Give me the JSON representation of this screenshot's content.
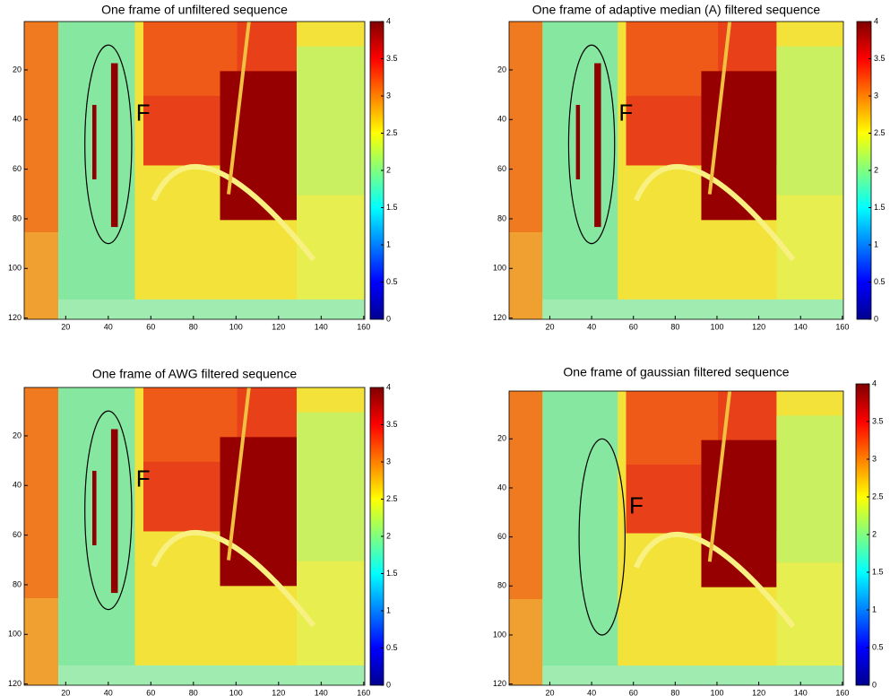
{
  "chart_data": [
    {
      "type": "heatmap",
      "title": "One frame of unfiltered sequence",
      "annotation": "F",
      "xlim": [
        0.5,
        160.5
      ],
      "xticks": [
        20,
        40,
        60,
        80,
        100,
        120,
        140,
        160
      ],
      "ylim": [
        0.5,
        120.5
      ],
      "yticks": [
        20,
        40,
        60,
        80,
        100,
        120
      ],
      "y_reversed": true,
      "clim": [
        0,
        4
      ],
      "cticks": [
        0,
        0.5,
        1,
        1.5,
        2,
        2.5,
        3,
        3.5,
        4
      ],
      "colormap": "jet"
    },
    {
      "type": "heatmap",
      "title": "One frame of adaptive median (A) filtered sequence",
      "annotation": "F",
      "xlim": [
        0.5,
        160.5
      ],
      "xticks": [
        20,
        40,
        60,
        80,
        100,
        120,
        140,
        160
      ],
      "ylim": [
        0.5,
        120.5
      ],
      "yticks": [
        20,
        40,
        60,
        80,
        100,
        120
      ],
      "y_reversed": true,
      "clim": [
        0,
        4
      ],
      "cticks": [
        0,
        0.5,
        1,
        1.5,
        2,
        2.5,
        3,
        3.5,
        4
      ],
      "colormap": "jet"
    },
    {
      "type": "heatmap",
      "title": "One frame of AWG filtered sequence",
      "annotation": "F",
      "xlim": [
        0.5,
        160.5
      ],
      "xticks": [
        20,
        40,
        60,
        80,
        100,
        120,
        140,
        160
      ],
      "ylim": [
        0.5,
        120.5
      ],
      "yticks": [
        20,
        40,
        60,
        80,
        100,
        120
      ],
      "y_reversed": true,
      "clim": [
        0,
        4
      ],
      "cticks": [
        0,
        0.5,
        1,
        1.5,
        2,
        2.5,
        3,
        3.5,
        4
      ],
      "colormap": "jet"
    },
    {
      "type": "heatmap",
      "title": "One frame of gaussian filtered sequence",
      "annotation": "F",
      "xlim": [
        0.5,
        160.5
      ],
      "xticks": [
        20,
        40,
        60,
        80,
        100,
        120,
        140,
        160
      ],
      "ylim": [
        0.5,
        120.5
      ],
      "yticks": [
        20,
        40,
        60,
        80,
        100,
        120
      ],
      "y_reversed": true,
      "clim": [
        0,
        4
      ],
      "cticks": [
        0,
        0.5,
        1,
        1.5,
        2,
        2.5,
        3,
        3.5,
        4
      ],
      "colormap": "jet"
    }
  ]
}
